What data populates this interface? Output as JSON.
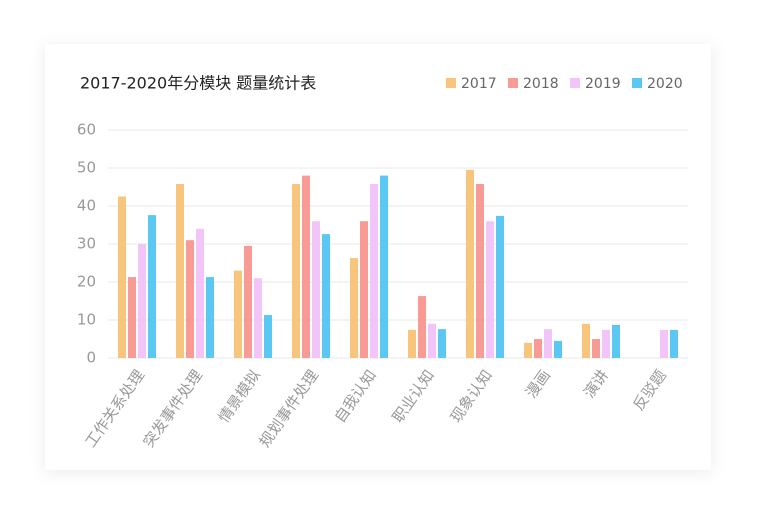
{
  "chart_data": {
    "type": "bar",
    "title": "2017-2020年分模块  题量统计表",
    "categories": [
      "工作关系处理",
      "突发事件处理",
      "情景模拟",
      "规划事件处理",
      "自我认知",
      "职业认知",
      "现象认知",
      "漫画",
      "演讲",
      "反驳题"
    ],
    "series": [
      {
        "name": "2017",
        "color": "#f8c57c",
        "values": [
          42.5,
          45.8,
          23,
          45.8,
          26.3,
          7.4,
          49.5,
          4,
          9,
          null
        ]
      },
      {
        "name": "2018",
        "color": "#f79b94",
        "values": [
          21.3,
          31,
          29.5,
          48,
          36,
          16.3,
          45.8,
          5,
          5,
          null
        ]
      },
      {
        "name": "2019",
        "color": "#f3c4f7",
        "values": [
          30,
          34,
          21,
          36,
          45.8,
          9,
          36,
          7.6,
          7.4,
          7.4
        ]
      },
      {
        "name": "2020",
        "color": "#5bc8f4",
        "values": [
          37.6,
          21.3,
          11.3,
          32.6,
          48,
          7.6,
          37.4,
          4.5,
          8.7,
          7.4
        ]
      }
    ],
    "ylim": [
      0,
      60
    ],
    "yticks": [
      0,
      10,
      20,
      30,
      40,
      50,
      60
    ],
    "grid": true,
    "legend": "top-right"
  }
}
